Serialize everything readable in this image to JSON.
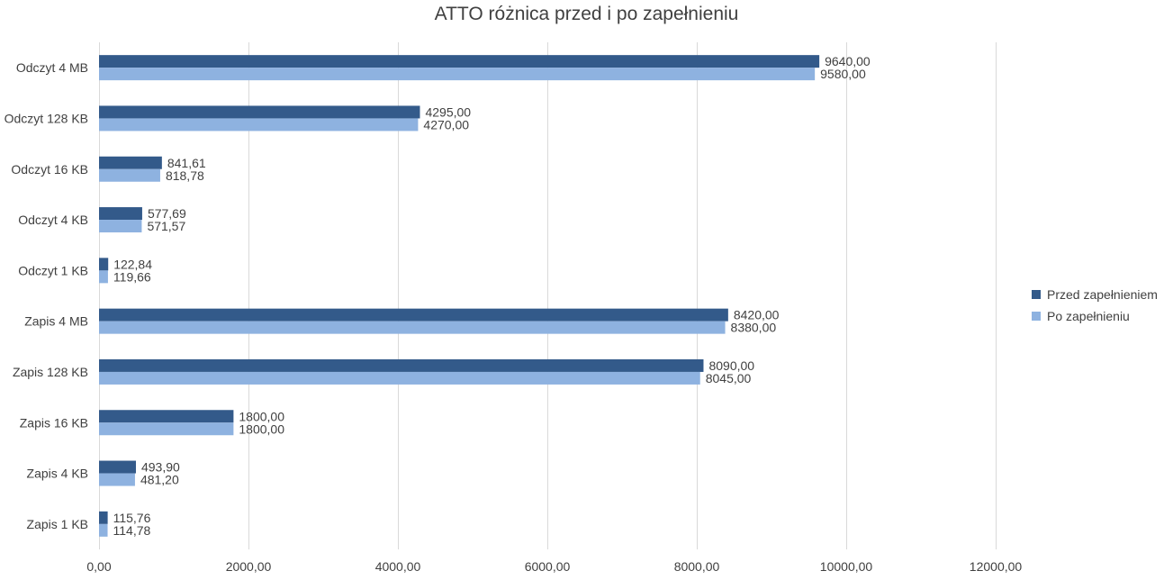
{
  "chart_data": {
    "type": "bar",
    "orientation": "horizontal",
    "title": "ATTO różnica przed i po zapełnieniu",
    "categories": [
      "Odczyt 4 MB",
      "Odczyt 128 KB",
      "Odczyt 16 KB",
      "Odczyt 4 KB",
      "Odczyt 1 KB",
      "Zapis 4 MB",
      "Zapis 128 KB",
      "Zapis 16 KB",
      "Zapis 4 KB",
      "Zapis 1 KB"
    ],
    "series": [
      {
        "name": "Przed zapełnieniem",
        "color": "#335a8a",
        "values": [
          9640,
          4295,
          841.61,
          577.69,
          122.84,
          8420,
          8090,
          1800,
          493.9,
          115.76
        ],
        "labels": [
          "9640,00",
          "4295,00",
          "841,61",
          "577,69",
          "122,84",
          "8420,00",
          "8090,00",
          "1800,00",
          "493,90",
          "115,76"
        ]
      },
      {
        "name": "Po zapełnieniu",
        "color": "#8eb2e0",
        "values": [
          9580,
          4270,
          818.78,
          571.57,
          119.66,
          8380,
          8045,
          1800,
          481.2,
          114.78
        ],
        "labels": [
          "9580,00",
          "4270,00",
          "818,78",
          "571,57",
          "119,66",
          "8380,00",
          "8045,00",
          "1800,00",
          "481,20",
          "114,78"
        ]
      }
    ],
    "xlim": [
      0,
      12000
    ],
    "x_ticks": [
      0,
      2000,
      4000,
      6000,
      8000,
      10000,
      12000
    ],
    "x_tick_labels": [
      "0,00",
      "2000,00",
      "4000,00",
      "6000,00",
      "8000,00",
      "10000,00",
      "12000,00"
    ],
    "grid": true,
    "legend_position": "right"
  }
}
